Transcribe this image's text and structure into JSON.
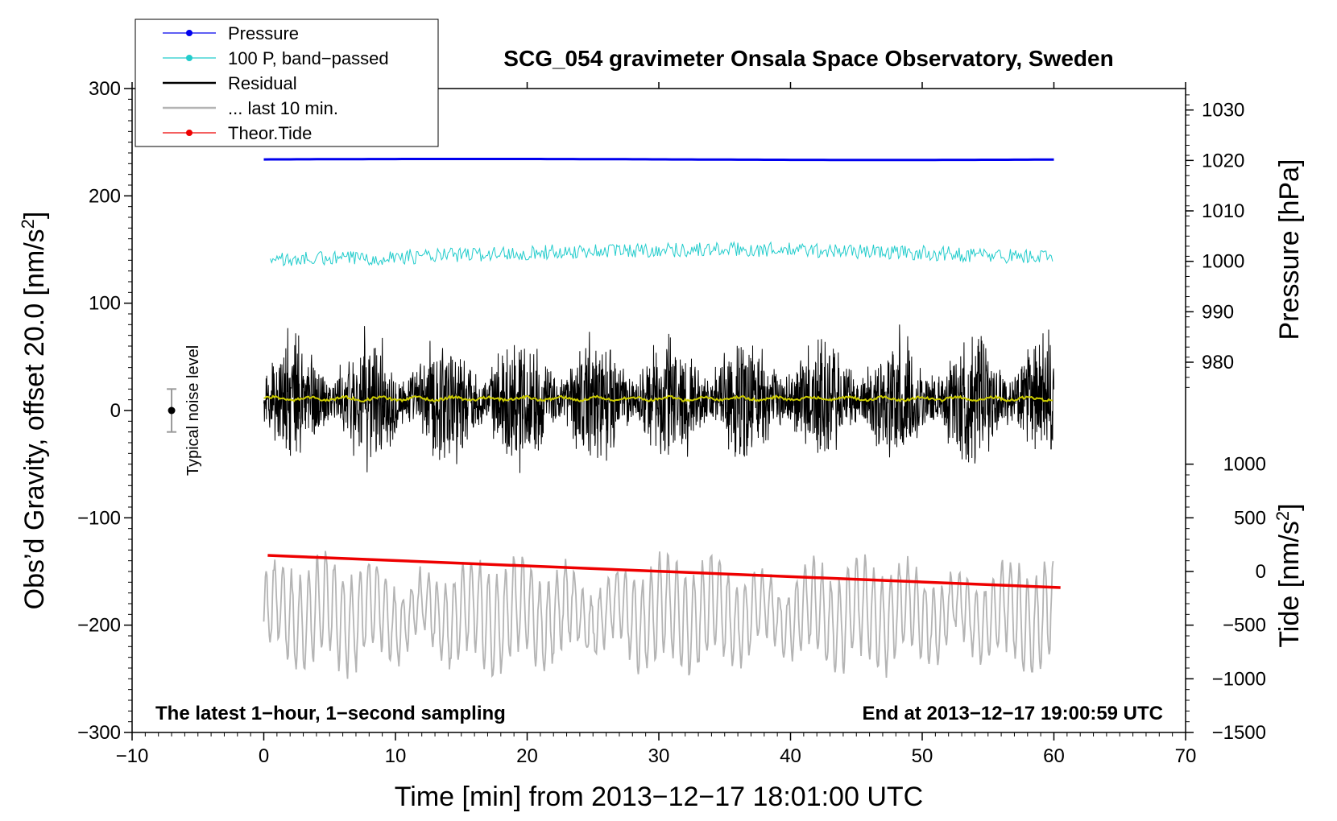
{
  "chart_data": {
    "type": "line",
    "title": "SCG_054 gravimeter Onsala Space Observatory, Sweden",
    "xlabel": "Time [min] from 2013−12−17 18:01:00 UTC",
    "ylabel_left_main": "Obs’d Gravity, offset 20.0 [nm/s",
    "ylabel_left_sup": "2",
    "ylabel_left_end": "]",
    "ylabel_right_pressure": "Pressure [hPa]",
    "ylabel_right_tide_main": "Tide [nm/s",
    "ylabel_right_tide_sup": "2",
    "ylabel_right_tide_end": "]",
    "xlim": [
      -10,
      70
    ],
    "ylim": [
      -300,
      300
    ],
    "x_ticks": [
      -10,
      0,
      10,
      20,
      30,
      40,
      50,
      60,
      70
    ],
    "x_tick_labels": [
      "−10",
      "0",
      "10",
      "20",
      "30",
      "40",
      "50",
      "60",
      "70"
    ],
    "y_ticks": [
      -300,
      -200,
      -100,
      0,
      100,
      200,
      300
    ],
    "y_tick_labels": [
      "−300",
      "−200",
      "−100",
      "0",
      "100",
      "200",
      "300"
    ],
    "pressure_ticks": [
      980,
      990,
      1000,
      1010,
      1020,
      1030
    ],
    "pressure_tick_labels": [
      "980",
      "990",
      "1000",
      "1010",
      "1020",
      "1030"
    ],
    "pressure_axis_map": {
      "value_a": 1020,
      "gravity_a": 233,
      "value_b": 980,
      "gravity_b": 45
    },
    "tide_ticks": [
      -1500,
      -1000,
      -500,
      0,
      500,
      1000
    ],
    "tide_tick_labels": [
      "−1500",
      "−1000",
      "−500",
      "0",
      "500",
      "1000"
    ],
    "tide_axis_map": {
      "value_a": 1000,
      "gravity_a": -50,
      "value_b": -1500,
      "gravity_b": -300
    },
    "series": [
      {
        "name": "Pressure",
        "color": "#0000ee",
        "style": "line-dot",
        "level": 1020.2,
        "drift": 0.1
      },
      {
        "name": "100 P, band−passed",
        "color": "#22cccc",
        "style": "line-dot",
        "gravity_level": 145,
        "noise_amplitude": 7
      },
      {
        "name": "Residual",
        "color": "#000000",
        "style": "line",
        "gravity_level": 10,
        "noise_amplitude": 55
      },
      {
        "name": "... last 10 min.",
        "color": "#b4b4b4",
        "style": "line",
        "gravity_level": -190,
        "amplitude": 45
      },
      {
        "name": "Theor.Tide",
        "color": "#ee0000",
        "style": "line-dot",
        "start": [
          0.3,
          -135
        ],
        "end": [
          60.5,
          -165
        ]
      }
    ],
    "yellow_trace": {
      "color": "#cccc00",
      "gravity_level": 11
    },
    "noise_level": {
      "label": "Typical noise level",
      "x": -7,
      "center": 0,
      "half_range": 20
    },
    "annotations": {
      "left": "The latest 1−hour, 1−second sampling",
      "right": "End at 2013−12−17 19:00:59 UTC"
    },
    "legend_position": "top-left",
    "grid": false
  },
  "colors": {
    "pressure": "#0000ee",
    "bandpassed": "#22cccc",
    "residual": "#000000",
    "last10": "#b4b4b4",
    "tide": "#ee0000",
    "yellow": "#cccc00"
  }
}
